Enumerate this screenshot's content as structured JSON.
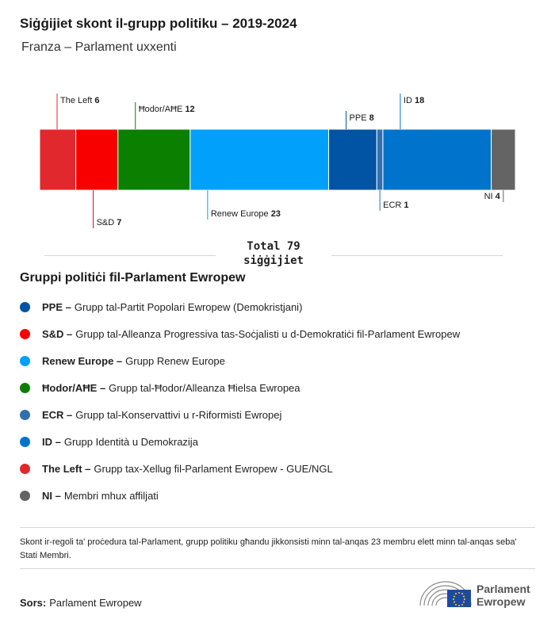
{
  "header": {
    "title": "Siġġijiet skont il-grupp politiku – 2019-2024",
    "subtitle": "Franza – Parlament uxxenti"
  },
  "chart_data": {
    "type": "bar",
    "stacked": true,
    "orientation": "horizontal",
    "total": 79,
    "categories": [
      "The Left",
      "S&D",
      "Ħodor/AĦE",
      "Renew Europe",
      "PPE",
      "ECR",
      "ID",
      "NI"
    ],
    "values": [
      6,
      7,
      12,
      23,
      8,
      1,
      18,
      4
    ],
    "colors": [
      "#e1292d",
      "#f80000",
      "#0b8000",
      "#00a0fb",
      "#0054a3",
      "#3070b1",
      "#0074cc",
      "#646464"
    ],
    "label_positions": [
      "top",
      "bottom",
      "top",
      "bottom",
      "top",
      "bottom",
      "top",
      "bottom"
    ]
  },
  "total": {
    "line1": "Total 79",
    "line2": "siġġijiet"
  },
  "legend": {
    "title": "Gruppi politiċi fil-Parlament Ewropew",
    "items": [
      {
        "abbr": "PPE –",
        "desc": "Grupp tal-Partit Popolari Ewropew (Demokristjani)",
        "color": "#0054a3"
      },
      {
        "abbr": "S&D –",
        "desc": "Grupp tal-Alleanza Progressiva tas-Soċjalisti u d-Demokratiċi fil-Parlament Ewropew",
        "color": "#f80000"
      },
      {
        "abbr": "Renew Europe –",
        "desc": "Grupp Renew Europe",
        "color": "#00a0fb"
      },
      {
        "abbr": "Ħodor/AĦE –",
        "desc": "Grupp tal-Ħodor/Alleanza Ħielsa Ewropea",
        "color": "#0b8000"
      },
      {
        "abbr": "ECR –",
        "desc": "Grupp tal-Konservattivi u r-Riformisti Ewropej",
        "color": "#3070b1"
      },
      {
        "abbr": "ID –",
        "desc": "Grupp Identità u Demokrazija",
        "color": "#0074cc"
      },
      {
        "abbr": "The Left –",
        "desc": "Grupp tax-Xellug fil-Parlament Ewropew - GUE/NGL",
        "color": "#e1292d"
      },
      {
        "abbr": "NI –",
        "desc": "Membri mhux affiljati",
        "color": "#646464"
      }
    ]
  },
  "footnote": "Skont ir-regoli ta' proċedura tal-Parlament, grupp politiku għandu jikkonsisti minn tal-anqas 23 membru elett minn tal-anqas seba' Stati Membri.",
  "source": {
    "label": "Sors:",
    "value": "Parlament Ewropew"
  },
  "logo": {
    "line1": "Parlament",
    "line2": "Ewropew"
  }
}
